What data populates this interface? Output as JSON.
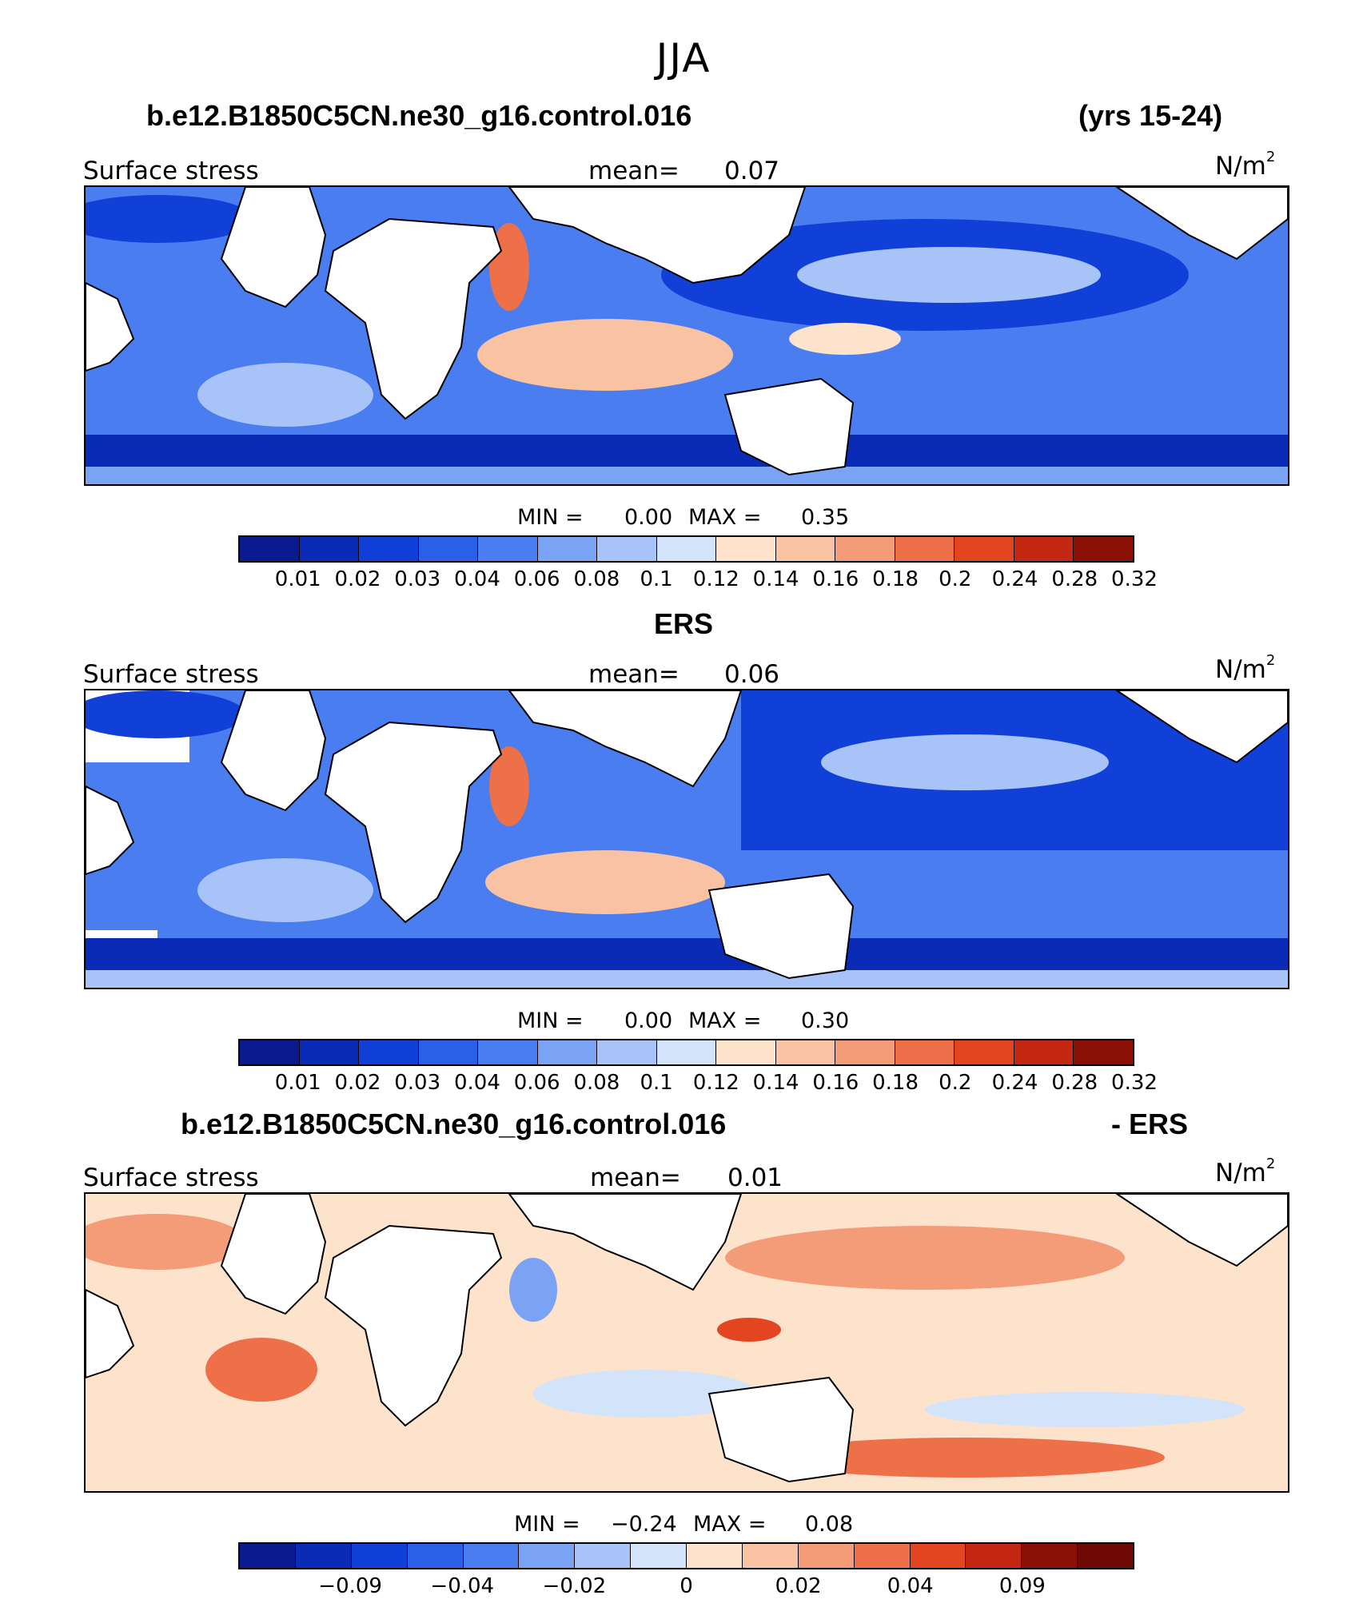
{
  "figure_title": "JJA",
  "panels": [
    {
      "header_left": "b.e12.B1850C5CN.ne30_g16.control.016",
      "header_right": "(yrs 15-24)",
      "variable_label": "Surface stress",
      "mean_label": "mean=",
      "mean_value": "0.07",
      "units_base": "N/m",
      "units_exp": "2",
      "min_label": "MIN =",
      "min_value": "0.00",
      "max_label": "MAX =",
      "max_value": "0.35",
      "colorbar_ticks": [
        "0.01",
        "0.02",
        "0.03",
        "0.04",
        "0.06",
        "0.08",
        "0.1",
        "0.12",
        "0.14",
        "0.16",
        "0.18",
        "0.2",
        "0.24",
        "0.28",
        "0.32"
      ],
      "colorbar_colors": [
        "#0a1a8f",
        "#0a2bb5",
        "#1040d8",
        "#2a5fe8",
        "#4a7ef0",
        "#7aa2f5",
        "#a8c3f7",
        "#d3e3fa",
        "#fde2cc",
        "#f9c3a3",
        "#f49c77",
        "#ee7048",
        "#e2451f",
        "#c32711",
        "#8b1106"
      ]
    },
    {
      "header_center": "ERS",
      "variable_label": "Surface stress",
      "mean_label": "mean=",
      "mean_value": "0.06",
      "units_base": "N/m",
      "units_exp": "2",
      "min_label": "MIN =",
      "min_value": "0.00",
      "max_label": "MAX =",
      "max_value": "0.30",
      "colorbar_ticks": [
        "0.01",
        "0.02",
        "0.03",
        "0.04",
        "0.06",
        "0.08",
        "0.1",
        "0.12",
        "0.14",
        "0.16",
        "0.18",
        "0.2",
        "0.24",
        "0.28",
        "0.32"
      ],
      "colorbar_colors": [
        "#0a1a8f",
        "#0a2bb5",
        "#1040d8",
        "#2a5fe8",
        "#4a7ef0",
        "#7aa2f5",
        "#a8c3f7",
        "#d3e3fa",
        "#fde2cc",
        "#f9c3a3",
        "#f49c77",
        "#ee7048",
        "#e2451f",
        "#c32711",
        "#8b1106"
      ]
    },
    {
      "header_left": "b.e12.B1850C5CN.ne30_g16.control.016",
      "header_right": "- ERS",
      "variable_label": "Surface stress",
      "mean_label": "mean=",
      "mean_value": "0.01",
      "units_base": "N/m",
      "units_exp": "2",
      "min_label": "MIN =",
      "min_value": "−0.24",
      "max_label": "MAX =",
      "max_value": "0.08",
      "colorbar_ticks": [
        "−0.09",
        "−0.04",
        "−0.02",
        "0",
        "0.02",
        "0.04",
        "0.09"
      ],
      "colorbar_colors": [
        "#0a1a8f",
        "#0a2bb5",
        "#1040d8",
        "#2a5fe8",
        "#4a7ef0",
        "#7aa2f5",
        "#a8c3f7",
        "#d3e3fa",
        "#fde2cc",
        "#f9c3a3",
        "#f49c77",
        "#ee7048",
        "#e2451f",
        "#c32711",
        "#8b1106",
        "#6e0a03"
      ]
    }
  ]
}
